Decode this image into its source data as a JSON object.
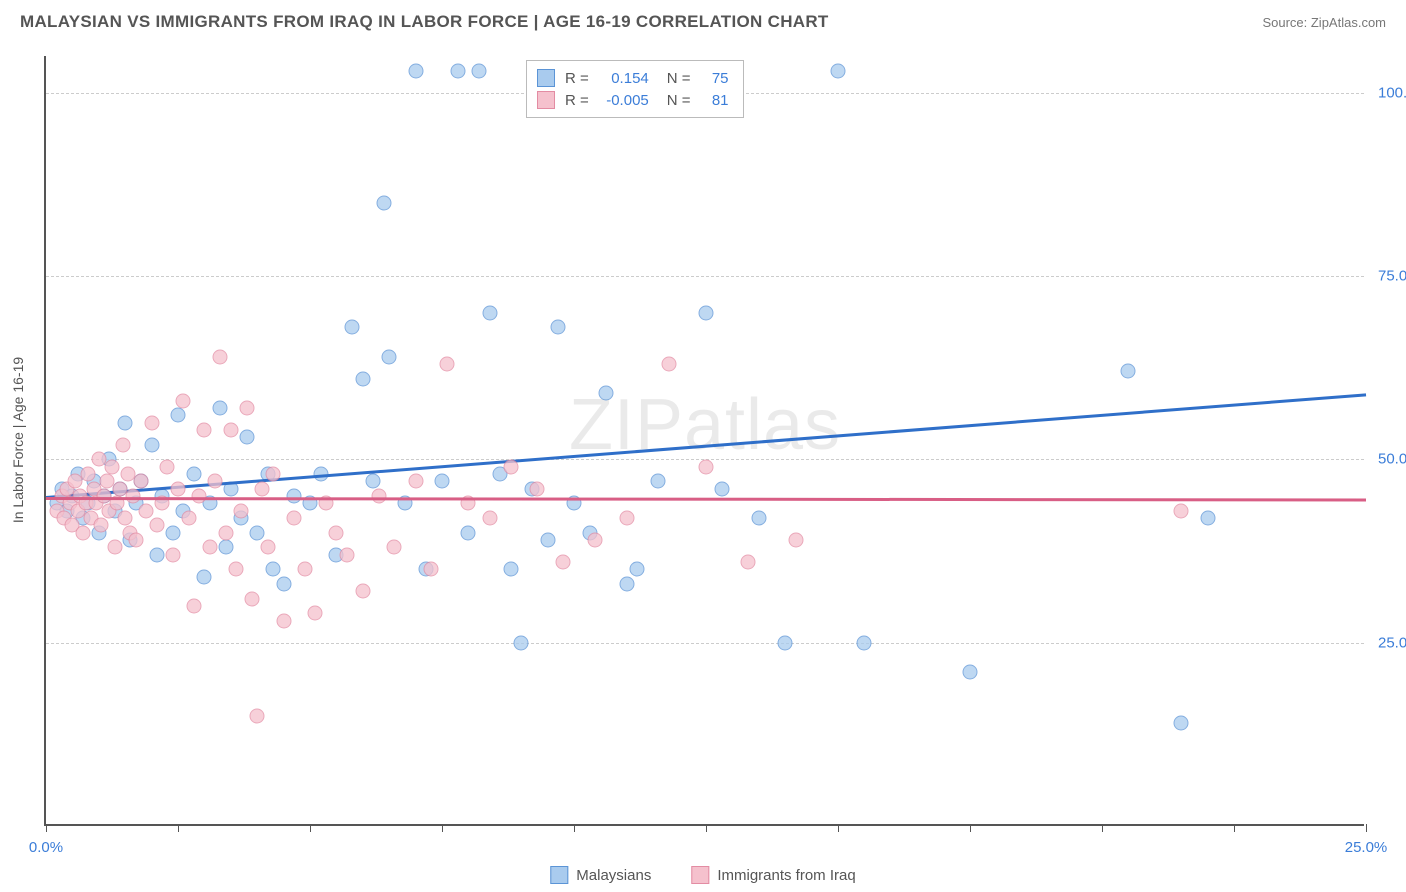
{
  "title": "MALAYSIAN VS IMMIGRANTS FROM IRAQ IN LABOR FORCE | AGE 16-19 CORRELATION CHART",
  "source_label": "Source: ZipAtlas.com",
  "y_axis_label": "In Labor Force | Age 16-19",
  "watermark": "ZIPatlas",
  "chart": {
    "type": "scatter",
    "xlim": [
      0,
      25
    ],
    "ylim": [
      0,
      105
    ],
    "x_ticks": [
      0,
      2.5,
      5,
      7.5,
      10,
      12.5,
      15,
      17.5,
      20,
      22.5,
      25
    ],
    "x_tick_labels": {
      "0": "0.0%",
      "25": "25.0%"
    },
    "y_ticks": [
      25,
      50,
      75,
      100
    ],
    "y_tick_labels": {
      "25": "25.0%",
      "50": "50.0%",
      "75": "75.0%",
      "100": "100.0%"
    },
    "grid_color": "#cccccc",
    "axis_color": "#555555",
    "background_color": "#ffffff",
    "value_text_color": "#3b7dd8",
    "series": [
      {
        "name": "Malaysians",
        "fill": "#a9cbee",
        "stroke": "#5b94d6",
        "trend_color": "#2f6fc9",
        "r": 0.154,
        "n": 75,
        "trend": {
          "x1": 0,
          "y1": 45,
          "x2": 25,
          "y2": 59
        },
        "points": [
          [
            0.2,
            44
          ],
          [
            0.3,
            46
          ],
          [
            0.4,
            43
          ],
          [
            0.5,
            45
          ],
          [
            0.6,
            48
          ],
          [
            0.7,
            42
          ],
          [
            0.8,
            44
          ],
          [
            0.9,
            47
          ],
          [
            1.0,
            40
          ],
          [
            1.1,
            45
          ],
          [
            1.2,
            50
          ],
          [
            1.3,
            43
          ],
          [
            1.4,
            46
          ],
          [
            1.5,
            55
          ],
          [
            1.6,
            39
          ],
          [
            1.7,
            44
          ],
          [
            1.8,
            47
          ],
          [
            2.0,
            52
          ],
          [
            2.1,
            37
          ],
          [
            2.2,
            45
          ],
          [
            2.4,
            40
          ],
          [
            2.5,
            56
          ],
          [
            2.6,
            43
          ],
          [
            2.8,
            48
          ],
          [
            3.0,
            34
          ],
          [
            3.1,
            44
          ],
          [
            3.3,
            57
          ],
          [
            3.4,
            38
          ],
          [
            3.5,
            46
          ],
          [
            3.7,
            42
          ],
          [
            3.8,
            53
          ],
          [
            4.0,
            40
          ],
          [
            4.2,
            48
          ],
          [
            4.3,
            35
          ],
          [
            4.5,
            33
          ],
          [
            4.7,
            45
          ],
          [
            5.0,
            44
          ],
          [
            5.2,
            48
          ],
          [
            5.5,
            37
          ],
          [
            5.8,
            68
          ],
          [
            6.0,
            61
          ],
          [
            6.2,
            47
          ],
          [
            6.4,
            85
          ],
          [
            6.5,
            64
          ],
          [
            6.8,
            44
          ],
          [
            7.0,
            103
          ],
          [
            7.2,
            35
          ],
          [
            7.5,
            47
          ],
          [
            7.8,
            103
          ],
          [
            8.0,
            40
          ],
          [
            8.2,
            103
          ],
          [
            8.4,
            70
          ],
          [
            8.6,
            48
          ],
          [
            8.8,
            35
          ],
          [
            9.0,
            25
          ],
          [
            9.2,
            46
          ],
          [
            9.5,
            39
          ],
          [
            9.7,
            68
          ],
          [
            10.0,
            44
          ],
          [
            10.3,
            40
          ],
          [
            10.6,
            59
          ],
          [
            11.0,
            33
          ],
          [
            11.2,
            35
          ],
          [
            11.6,
            47
          ],
          [
            12.2,
            103
          ],
          [
            12.5,
            70
          ],
          [
            12.8,
            46
          ],
          [
            13.5,
            42
          ],
          [
            14.0,
            25
          ],
          [
            15.0,
            103
          ],
          [
            15.5,
            25
          ],
          [
            17.5,
            21
          ],
          [
            20.5,
            62
          ],
          [
            21.5,
            14
          ],
          [
            22.0,
            42
          ]
        ]
      },
      {
        "name": "Immigrants from Iraq",
        "fill": "#f5c1cd",
        "stroke": "#e38ca3",
        "trend_color": "#d85e85",
        "r": -0.005,
        "n": 81,
        "trend": {
          "x1": 0,
          "y1": 44.8,
          "x2": 25,
          "y2": 44.6
        },
        "points": [
          [
            0.2,
            43
          ],
          [
            0.3,
            45
          ],
          [
            0.35,
            42
          ],
          [
            0.4,
            46
          ],
          [
            0.45,
            44
          ],
          [
            0.5,
            41
          ],
          [
            0.55,
            47
          ],
          [
            0.6,
            43
          ],
          [
            0.65,
            45
          ],
          [
            0.7,
            40
          ],
          [
            0.75,
            44
          ],
          [
            0.8,
            48
          ],
          [
            0.85,
            42
          ],
          [
            0.9,
            46
          ],
          [
            0.95,
            44
          ],
          [
            1.0,
            50
          ],
          [
            1.05,
            41
          ],
          [
            1.1,
            45
          ],
          [
            1.15,
            47
          ],
          [
            1.2,
            43
          ],
          [
            1.25,
            49
          ],
          [
            1.3,
            38
          ],
          [
            1.35,
            44
          ],
          [
            1.4,
            46
          ],
          [
            1.45,
            52
          ],
          [
            1.5,
            42
          ],
          [
            1.55,
            48
          ],
          [
            1.6,
            40
          ],
          [
            1.65,
            45
          ],
          [
            1.7,
            39
          ],
          [
            1.8,
            47
          ],
          [
            1.9,
            43
          ],
          [
            2.0,
            55
          ],
          [
            2.1,
            41
          ],
          [
            2.2,
            44
          ],
          [
            2.3,
            49
          ],
          [
            2.4,
            37
          ],
          [
            2.5,
            46
          ],
          [
            2.6,
            58
          ],
          [
            2.7,
            42
          ],
          [
            2.8,
            30
          ],
          [
            2.9,
            45
          ],
          [
            3.0,
            54
          ],
          [
            3.1,
            38
          ],
          [
            3.2,
            47
          ],
          [
            3.3,
            64
          ],
          [
            3.4,
            40
          ],
          [
            3.5,
            54
          ],
          [
            3.6,
            35
          ],
          [
            3.7,
            43
          ],
          [
            3.8,
            57
          ],
          [
            3.9,
            31
          ],
          [
            4.0,
            15
          ],
          [
            4.1,
            46
          ],
          [
            4.2,
            38
          ],
          [
            4.3,
            48
          ],
          [
            4.5,
            28
          ],
          [
            4.7,
            42
          ],
          [
            4.9,
            35
          ],
          [
            5.1,
            29
          ],
          [
            5.3,
            44
          ],
          [
            5.5,
            40
          ],
          [
            5.7,
            37
          ],
          [
            6.0,
            32
          ],
          [
            6.3,
            45
          ],
          [
            6.6,
            38
          ],
          [
            7.0,
            47
          ],
          [
            7.3,
            35
          ],
          [
            7.6,
            63
          ],
          [
            8.0,
            44
          ],
          [
            8.4,
            42
          ],
          [
            8.8,
            49
          ],
          [
            9.3,
            46
          ],
          [
            9.8,
            36
          ],
          [
            10.4,
            39
          ],
          [
            11.0,
            42
          ],
          [
            11.8,
            63
          ],
          [
            12.5,
            49
          ],
          [
            13.3,
            36
          ],
          [
            14.2,
            39
          ],
          [
            21.5,
            43
          ]
        ]
      }
    ]
  },
  "stats_box": {
    "r_label": "R =",
    "n_label": "N ="
  },
  "bottom_legend": [
    "Malaysians",
    "Immigrants from Iraq"
  ]
}
